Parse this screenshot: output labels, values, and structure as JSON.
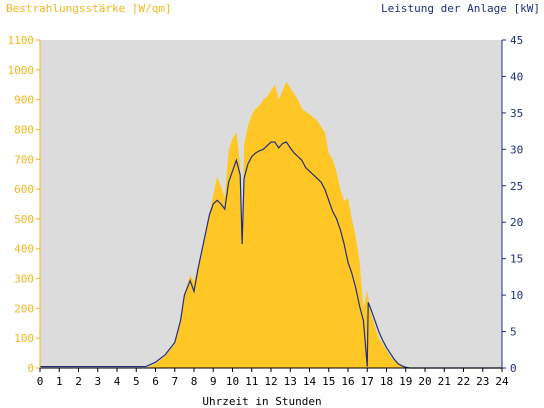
{
  "chart_data": {
    "type": "area",
    "left_axis_label": "Bestrahlungsstärke [W/qm]",
    "right_axis_label": "Leistung der Anlage [kW]",
    "xlabel": "Uhrzeit in Stunden",
    "x_ticks": [
      "0",
      "1",
      "2",
      "3",
      "4",
      "5",
      "6",
      "7",
      "8",
      "9",
      "10",
      "11",
      "12",
      "13",
      "14",
      "15",
      "16",
      "17",
      "18",
      "19",
      "20",
      "21",
      "22",
      "23",
      "24"
    ],
    "left_ticks": [
      "0",
      "100",
      "200",
      "300",
      "400",
      "500",
      "600",
      "700",
      "800",
      "900",
      "1000",
      "1100"
    ],
    "right_ticks": [
      "0",
      "5",
      "10",
      "15",
      "20",
      "25",
      "30",
      "35",
      "40",
      "45"
    ],
    "xlim": [
      0,
      24
    ],
    "ylim_left": [
      0,
      1100
    ],
    "ylim_right": [
      0,
      45
    ],
    "grid": false,
    "series": [
      {
        "name": "Bestrahlungsstärke",
        "axis": "left",
        "style": "filled-area",
        "color": "#ffc726",
        "x": [
          0,
          5.5,
          6,
          6.5,
          7,
          7.3,
          7.5,
          7.8,
          8,
          8.2,
          8.4,
          8.6,
          8.8,
          9,
          9.2,
          9.4,
          9.6,
          9.8,
          10,
          10.2,
          10.4,
          10.5,
          10.6,
          10.8,
          11,
          11.2,
          11.4,
          11.6,
          11.8,
          12,
          12.2,
          12.4,
          12.6,
          12.8,
          13,
          13.2,
          13.4,
          13.6,
          13.8,
          14,
          14.2,
          14.4,
          14.6,
          14.8,
          15,
          15.2,
          15.4,
          15.6,
          15.8,
          16,
          16.2,
          16.4,
          16.6,
          16.8,
          17,
          17.2,
          17.4,
          17.6,
          17.8,
          18,
          18.2,
          18.4,
          18.6,
          18.8,
          19,
          19.2,
          19.5,
          20,
          24
        ],
        "y": [
          0,
          0,
          15,
          40,
          80,
          160,
          250,
          310,
          290,
          330,
          380,
          450,
          520,
          580,
          640,
          610,
          570,
          730,
          770,
          790,
          680,
          420,
          750,
          810,
          850,
          870,
          880,
          900,
          910,
          930,
          950,
          900,
          930,
          960,
          940,
          920,
          900,
          870,
          860,
          850,
          840,
          830,
          810,
          790,
          720,
          700,
          660,
          600,
          560,
          570,
          500,
          440,
          360,
          200,
          260,
          180,
          140,
          100,
          80,
          60,
          40,
          25,
          12,
          5,
          2,
          0,
          0,
          0,
          0
        ]
      },
      {
        "name": "Leistung der Anlage",
        "axis": "right",
        "style": "line",
        "color": "#1f2f7a",
        "x": [
          0,
          5.5,
          6,
          6.5,
          7,
          7.3,
          7.5,
          7.8,
          8,
          8.2,
          8.4,
          8.6,
          8.8,
          9,
          9.2,
          9.4,
          9.6,
          9.8,
          10,
          10.2,
          10.4,
          10.5,
          10.6,
          10.8,
          11,
          11.2,
          11.4,
          11.6,
          11.8,
          12,
          12.2,
          12.4,
          12.6,
          12.8,
          13,
          13.2,
          13.4,
          13.6,
          13.8,
          14,
          14.2,
          14.4,
          14.6,
          14.8,
          15,
          15.2,
          15.4,
          15.6,
          15.8,
          16,
          16.2,
          16.4,
          16.6,
          16.8,
          17,
          17.05,
          17.2,
          17.4,
          17.6,
          17.8,
          18,
          18.2,
          18.4,
          18.6,
          18.8,
          19,
          19.2,
          19.5,
          20,
          24
        ],
        "y": [
          0.2,
          0.2,
          0.8,
          1.8,
          3.5,
          6.5,
          10,
          12,
          10.5,
          13.5,
          16,
          18.5,
          21,
          22.5,
          23,
          22.5,
          21.8,
          25.5,
          27,
          28.5,
          26.5,
          17,
          26,
          28,
          29,
          29.5,
          29.8,
          30,
          30.5,
          31,
          31,
          30.2,
          30.8,
          31,
          30.2,
          29.5,
          29,
          28.5,
          27.5,
          27,
          26.5,
          26,
          25.5,
          24.5,
          23,
          21.5,
          20.5,
          19,
          17,
          14.5,
          13,
          11,
          8.5,
          6.5,
          0.2,
          9,
          8,
          6.5,
          5,
          3.8,
          2.8,
          2,
          1.2,
          0.6,
          0.3,
          0.1,
          0,
          0,
          0,
          0
        ]
      }
    ]
  },
  "colors": {
    "plot_background": "#dcdcdc",
    "irradiance_fill": "#ffc726",
    "power_line": "#1f2f7a",
    "left_axis_text": "#f2b71c",
    "right_axis_text": "#1f2f7a"
  }
}
